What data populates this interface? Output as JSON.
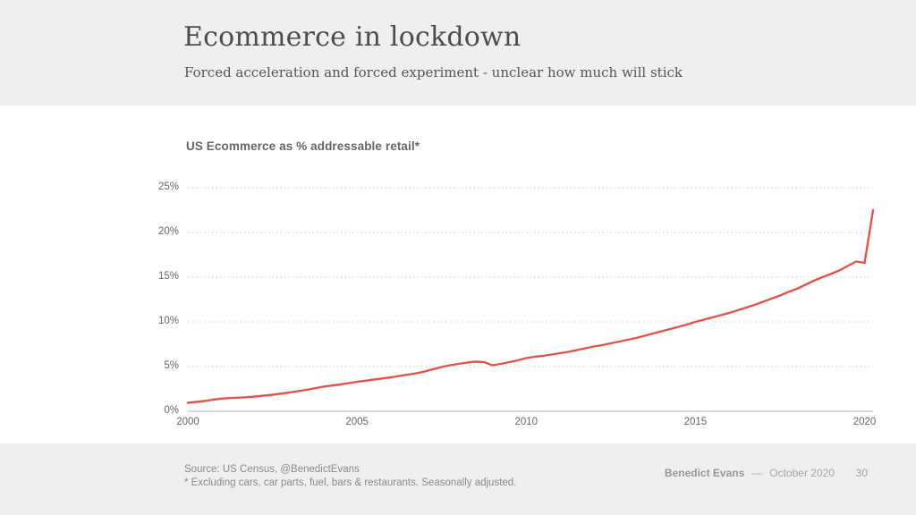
{
  "header": {
    "title": "Ecommerce in lockdown",
    "subtitle": "Forced acceleration and forced experiment - unclear how much will stick"
  },
  "footer": {
    "source_line1": "Source: US Census, @BenedictEvans",
    "source_line2": "* Excluding cars, car parts, fuel, bars & restaurants. Seasonally adjusted.",
    "author": "Benedict Evans",
    "separator": "—",
    "date": "October 2020",
    "page_number": "30"
  },
  "colors": {
    "line_accent": "#E15449",
    "band_background": "#EFEFEF",
    "gridline": "#C9C9C9",
    "axis_baseline": "#D9D9D9"
  },
  "chart_data": {
    "type": "line",
    "title": "US Ecommerce as % addressable retail*",
    "series_name": "US Ecommerce as % of addressable retail",
    "line_color": "#E15449",
    "grid": "horizontal-dotted",
    "legend": "none",
    "xlabel": "",
    "ylabel": "",
    "xlim": [
      2000,
      2020.25
    ],
    "ylim": [
      0,
      25
    ],
    "x_ticks": [
      2000,
      2005,
      2010,
      2015,
      2020
    ],
    "y_ticks": [
      0,
      5,
      10,
      15,
      20,
      25
    ],
    "y_tick_suffix": "%",
    "x": [
      2000.0,
      2000.25,
      2000.5,
      2000.75,
      2001.0,
      2001.25,
      2001.5,
      2001.75,
      2002.0,
      2002.25,
      2002.5,
      2002.75,
      2003.0,
      2003.25,
      2003.5,
      2003.75,
      2004.0,
      2004.25,
      2004.5,
      2004.75,
      2005.0,
      2005.25,
      2005.5,
      2005.75,
      2006.0,
      2006.25,
      2006.5,
      2006.75,
      2007.0,
      2007.25,
      2007.5,
      2007.75,
      2008.0,
      2008.25,
      2008.5,
      2008.75,
      2009.0,
      2009.25,
      2009.5,
      2009.75,
      2010.0,
      2010.25,
      2010.5,
      2010.75,
      2011.0,
      2011.25,
      2011.5,
      2011.75,
      2012.0,
      2012.25,
      2012.5,
      2012.75,
      2013.0,
      2013.25,
      2013.5,
      2013.75,
      2014.0,
      2014.25,
      2014.5,
      2014.75,
      2015.0,
      2015.25,
      2015.5,
      2015.75,
      2016.0,
      2016.25,
      2016.5,
      2016.75,
      2017.0,
      2017.25,
      2017.5,
      2017.75,
      2018.0,
      2018.25,
      2018.5,
      2018.75,
      2019.0,
      2019.25,
      2019.5,
      2019.75,
      2020.0,
      2020.25
    ],
    "values": [
      0.95,
      1.05,
      1.15,
      1.3,
      1.42,
      1.48,
      1.52,
      1.58,
      1.65,
      1.75,
      1.85,
      1.97,
      2.1,
      2.25,
      2.4,
      2.57,
      2.75,
      2.88,
      3.0,
      3.15,
      3.3,
      3.42,
      3.55,
      3.67,
      3.8,
      3.95,
      4.1,
      4.25,
      4.45,
      4.7,
      4.95,
      5.15,
      5.3,
      5.45,
      5.55,
      5.5,
      5.15,
      5.3,
      5.5,
      5.7,
      5.95,
      6.1,
      6.2,
      6.35,
      6.5,
      6.65,
      6.85,
      7.05,
      7.25,
      7.4,
      7.6,
      7.8,
      8.0,
      8.2,
      8.45,
      8.7,
      8.95,
      9.2,
      9.45,
      9.7,
      10.0,
      10.25,
      10.5,
      10.75,
      11.0,
      11.3,
      11.6,
      11.9,
      12.25,
      12.6,
      12.95,
      13.35,
      13.7,
      14.15,
      14.6,
      15.0,
      15.35,
      15.75,
      16.25,
      16.75,
      16.6,
      22.5
    ]
  }
}
